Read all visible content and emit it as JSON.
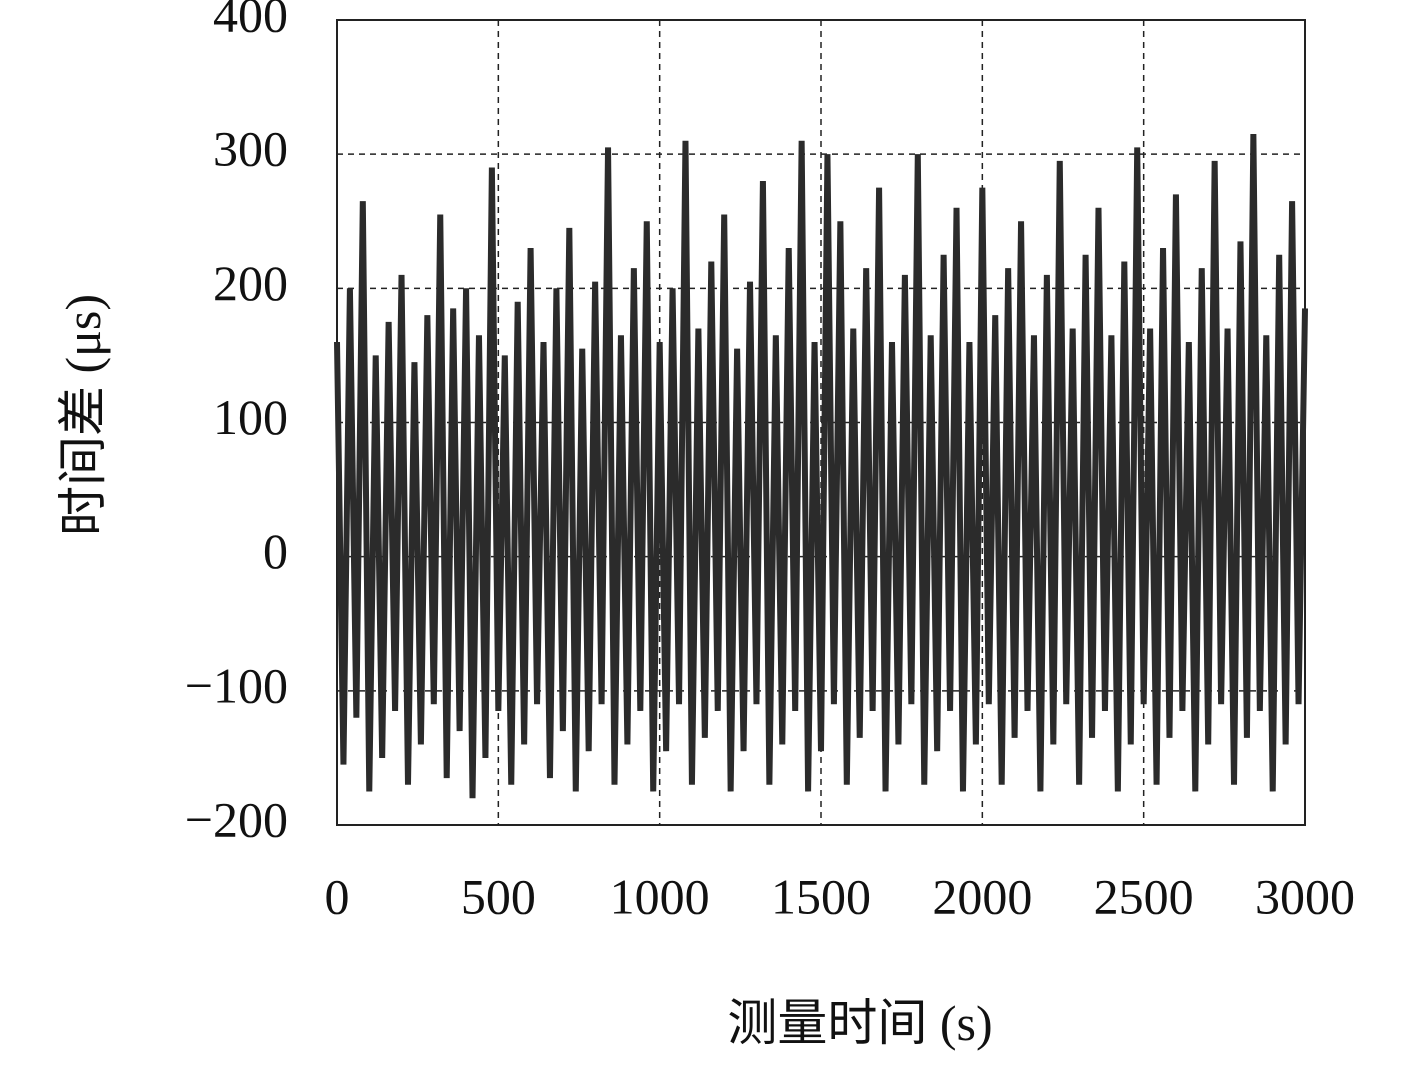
{
  "chart_data": {
    "type": "line",
    "x_label": "测量时间 (s)",
    "y_label": "时间差 (μs)",
    "xlim": [
      0,
      3000
    ],
    "ylim": [
      -200,
      400
    ],
    "xticks": [
      0,
      500,
      1000,
      1500,
      2000,
      2500,
      3000
    ],
    "yticks": [
      {
        "value": -200,
        "label": "−200"
      },
      {
        "value": -100,
        "label": "−100"
      },
      0,
      100,
      200,
      300,
      400
    ],
    "grid": true,
    "series": [
      {
        "color": "#2b2b2b",
        "x": [
          0,
          20,
          40,
          60,
          80,
          100,
          120,
          140,
          160,
          180,
          200,
          220,
          240,
          260,
          280,
          300,
          320,
          340,
          360,
          380,
          400,
          420,
          440,
          460,
          480,
          500,
          520,
          540,
          560,
          580,
          600,
          620,
          640,
          660,
          680,
          700,
          720,
          740,
          760,
          780,
          800,
          820,
          840,
          860,
          880,
          900,
          920,
          940,
          960,
          980,
          1000,
          1020,
          1040,
          1060,
          1080,
          1100,
          1120,
          1140,
          1160,
          1180,
          1200,
          1220,
          1240,
          1260,
          1280,
          1300,
          1320,
          1340,
          1360,
          1380,
          1400,
          1420,
          1440,
          1460,
          1480,
          1500,
          1520,
          1540,
          1560,
          1580,
          1600,
          1620,
          1640,
          1660,
          1680,
          1700,
          1720,
          1740,
          1760,
          1780,
          1800,
          1820,
          1840,
          1860,
          1880,
          1900,
          1920,
          1940,
          1960,
          1980,
          2000,
          2020,
          2040,
          2060,
          2080,
          2100,
          2120,
          2140,
          2160,
          2180,
          2200,
          2220,
          2240,
          2260,
          2280,
          2300,
          2320,
          2340,
          2360,
          2380,
          2400,
          2420,
          2440,
          2460,
          2480,
          2500,
          2520,
          2540,
          2560,
          2580,
          2600,
          2620,
          2640,
          2660,
          2680,
          2700,
          2720,
          2740,
          2760,
          2780,
          2800,
          2820,
          2840,
          2860,
          2880,
          2900,
          2920,
          2940,
          2960,
          2980,
          3000
        ],
        "values": [
          160,
          -155,
          200,
          -120,
          265,
          -175,
          150,
          -150,
          175,
          -115,
          210,
          -170,
          145,
          -140,
          180,
          -110,
          255,
          -165,
          185,
          -130,
          200,
          -180,
          165,
          -150,
          290,
          -115,
          150,
          -170,
          190,
          -140,
          230,
          -110,
          160,
          -165,
          200,
          -130,
          245,
          -175,
          155,
          -145,
          205,
          -110,
          305,
          -170,
          165,
          -140,
          215,
          -115,
          250,
          -175,
          160,
          -145,
          200,
          -110,
          310,
          -170,
          170,
          -135,
          220,
          -115,
          255,
          -175,
          155,
          -145,
          205,
          -110,
          280,
          -170,
          165,
          -140,
          230,
          -115,
          310,
          -175,
          160,
          -145,
          300,
          -110,
          250,
          -170,
          170,
          -135,
          215,
          -115,
          275,
          -175,
          160,
          -140,
          210,
          -110,
          300,
          -170,
          165,
          -145,
          225,
          -115,
          260,
          -175,
          160,
          -140,
          275,
          -110,
          180,
          -170,
          215,
          -135,
          250,
          -115,
          165,
          -175,
          210,
          -140,
          295,
          -110,
          170,
          -170,
          225,
          -135,
          260,
          -115,
          165,
          -175,
          220,
          -140,
          305,
          -110,
          170,
          -170,
          230,
          -135,
          270,
          -115,
          160,
          -175,
          215,
          -140,
          295,
          -110,
          170,
          -170,
          235,
          -135,
          315,
          -115,
          165,
          -175,
          225,
          -140,
          265,
          -110,
          185
        ]
      }
    ]
  }
}
